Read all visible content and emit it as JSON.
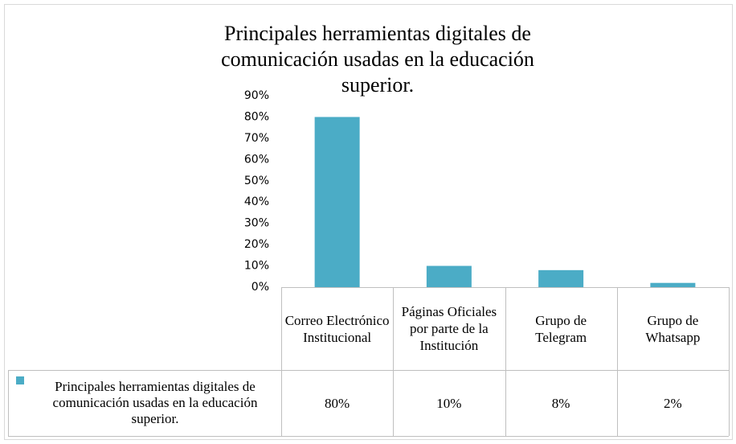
{
  "chart_data": {
    "type": "bar",
    "title": "Principales herramientas digitales de comunicación usadas en la educación superior.",
    "categories": [
      "Correo Electrónico Institucional",
      "Páginas Oficiales por parte de la Institución",
      "Grupo de Telegram",
      "Grupo de Whatsapp"
    ],
    "series": [
      {
        "name": "Principales herramientas digitales de comunicación usadas en la educación superior.",
        "color": "#4bacc6",
        "values": [
          80,
          10,
          8,
          2
        ],
        "value_labels": [
          "80%",
          "10%",
          "8%",
          "2%"
        ]
      }
    ],
    "ylim": [
      0,
      90
    ],
    "yticks": [
      {
        "value": 0,
        "label": "0%"
      },
      {
        "value": 10,
        "label": "10%"
      },
      {
        "value": 20,
        "label": "20%"
      },
      {
        "value": 30,
        "label": "30%"
      },
      {
        "value": 40,
        "label": "40%"
      },
      {
        "value": 50,
        "label": "50%"
      },
      {
        "value": 60,
        "label": "60%"
      },
      {
        "value": 70,
        "label": "70%"
      },
      {
        "value": 80,
        "label": "80%"
      },
      {
        "value": 90,
        "label": "90%"
      }
    ],
    "grid": false
  }
}
